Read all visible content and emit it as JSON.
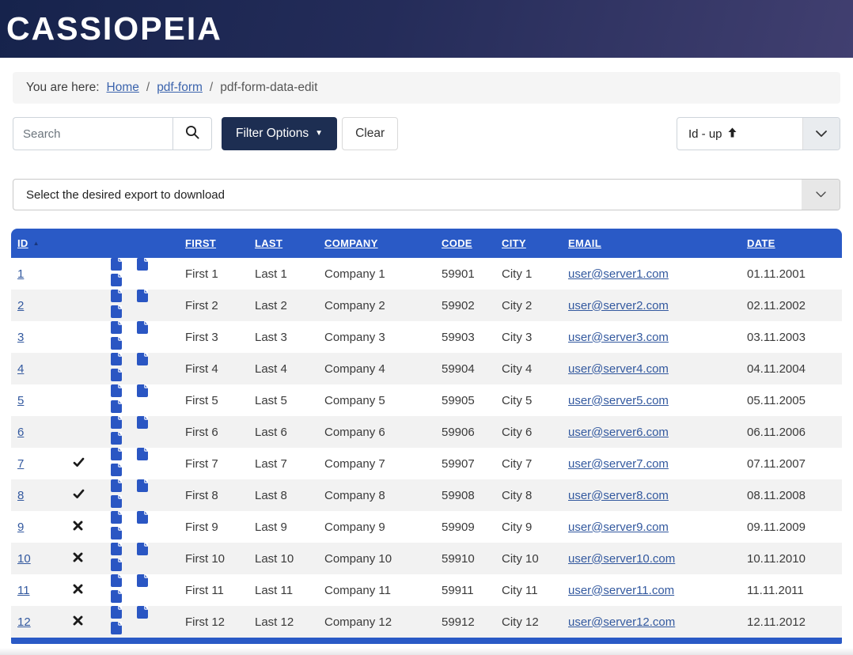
{
  "brand": "CASSIOPEIA",
  "breadcrumb": {
    "prefix": "You are here:",
    "separator": "/",
    "links": [
      {
        "label": "Home"
      },
      {
        "label": "pdf-form"
      }
    ],
    "current": "pdf-form-data-edit"
  },
  "toolbar": {
    "search_placeholder": "Search",
    "filter_button_label": "Filter Options",
    "clear_button_label": "Clear",
    "sort_selected": "Id - up"
  },
  "export": {
    "placeholder": "Select the desired export to download"
  },
  "table": {
    "sort_column": "ID",
    "sort_direction": "ascending",
    "columns": {
      "id": "ID",
      "first": "FIRST",
      "last": "LAST",
      "company": "COMPANY",
      "code": "CODE",
      "city": "CITY",
      "email": "EMAIL",
      "date": "DATE"
    },
    "rows": [
      {
        "id": "1",
        "mark": "",
        "first": "First 1",
        "last": "Last 1",
        "company": "Company 1",
        "code": "59901",
        "city": "City 1",
        "email": "user@server1.com",
        "date": "01.11.2001"
      },
      {
        "id": "2",
        "mark": "",
        "first": "First 2",
        "last": "Last 2",
        "company": "Company 2",
        "code": "59902",
        "city": "City 2",
        "email": "user@server2.com",
        "date": "02.11.2002"
      },
      {
        "id": "3",
        "mark": "",
        "first": "First 3",
        "last": "Last 3",
        "company": "Company 3",
        "code": "59903",
        "city": "City 3",
        "email": "user@server3.com",
        "date": "03.11.2003"
      },
      {
        "id": "4",
        "mark": "",
        "first": "First 4",
        "last": "Last 4",
        "company": "Company 4",
        "code": "59904",
        "city": "City 4",
        "email": "user@server4.com",
        "date": "04.11.2004"
      },
      {
        "id": "5",
        "mark": "",
        "first": "First 5",
        "last": "Last 5",
        "company": "Company 5",
        "code": "59905",
        "city": "City 5",
        "email": "user@server5.com",
        "date": "05.11.2005"
      },
      {
        "id": "6",
        "mark": "",
        "first": "First 6",
        "last": "Last 6",
        "company": "Company 6",
        "code": "59906",
        "city": "City 6",
        "email": "user@server6.com",
        "date": "06.11.2006"
      },
      {
        "id": "7",
        "mark": "check",
        "first": "First 7",
        "last": "Last 7",
        "company": "Company 7",
        "code": "59907",
        "city": "City 7",
        "email": "user@server7.com",
        "date": "07.11.2007"
      },
      {
        "id": "8",
        "mark": "check",
        "first": "First 8",
        "last": "Last 8",
        "company": "Company 8",
        "code": "59908",
        "city": "City 8",
        "email": "user@server8.com",
        "date": "08.11.2008"
      },
      {
        "id": "9",
        "mark": "cross",
        "first": "First 9",
        "last": "Last 9",
        "company": "Company 9",
        "code": "59909",
        "city": "City 9",
        "email": "user@server9.com",
        "date": "09.11.2009"
      },
      {
        "id": "10",
        "mark": "cross",
        "first": "First 10",
        "last": "Last 10",
        "company": "Company 10",
        "code": "59910",
        "city": "City 10",
        "email": "user@server10.com",
        "date": "10.11.2010"
      },
      {
        "id": "11",
        "mark": "cross",
        "first": "First 11",
        "last": "Last 11",
        "company": "Company 11",
        "code": "59911",
        "city": "City 11",
        "email": "user@server11.com",
        "date": "11.11.2011"
      },
      {
        "id": "12",
        "mark": "cross",
        "first": "First 12",
        "last": "Last 12",
        "company": "Company 12",
        "code": "59912",
        "city": "City 12",
        "email": "user@server12.com",
        "date": "12.11.2012"
      }
    ]
  },
  "colors": {
    "header_gradient_start": "#16234c",
    "header_gradient_end": "#413f70",
    "table_header_blue": "#2a5ac6",
    "primary_button_navy": "#1d2e52",
    "link_blue": "#33599f",
    "doc_icon_blue": "#2a56c3",
    "stripe_gray": "#f2f2f2"
  }
}
